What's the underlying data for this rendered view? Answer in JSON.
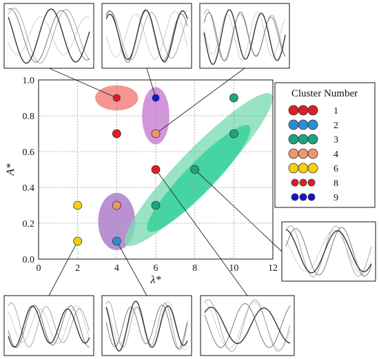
{
  "chart_data": {
    "type": "scatter",
    "xlabel": "λ*",
    "ylabel": "A*",
    "xlim": [
      0,
      12
    ],
    "ylim": [
      0,
      1
    ],
    "x_ticks": [
      "0",
      "2",
      "4",
      "6",
      "8",
      "10",
      "12"
    ],
    "y_ticks": [
      "0.0",
      "0.2",
      "0.4",
      "0.6",
      "0.8",
      "1.0"
    ],
    "grid": true,
    "legend": {
      "title": "Cluster Number",
      "placement": "right",
      "entries": [
        {
          "label": "1",
          "color": "#dc1f26",
          "size": "large"
        },
        {
          "label": "2",
          "color": "#2a8fd1",
          "size": "large"
        },
        {
          "label": "3",
          "color": "#1fa37e",
          "size": "large"
        },
        {
          "label": "4",
          "color": "#f0956a",
          "size": "large"
        },
        {
          "label": "6",
          "color": "#f2d20f",
          "size": "large"
        },
        {
          "label": "8",
          "color": "#dc1f26",
          "size": "small"
        },
        {
          "label": "9",
          "color": "#1414d6",
          "size": "small"
        }
      ]
    },
    "regions": [
      {
        "cluster": "1",
        "color": "#f47a75",
        "cx": 4,
        "cy": 0.9,
        "rx": 1.1,
        "ry": 0.07,
        "angle": 0
      },
      {
        "cluster": "4/9",
        "color": "#c77cd1",
        "cx": 6,
        "cy": 0.8,
        "rx": 0.7,
        "ry": 0.16,
        "angle": 0
      },
      {
        "cluster": "2/4",
        "color": "#a874c7",
        "cx": 4,
        "cy": 0.21,
        "rx": 0.95,
        "ry": 0.16,
        "angle": 0
      },
      {
        "cluster": "3 outer",
        "color": "#7fdcb6",
        "cx": 8.2,
        "cy": 0.5,
        "rx": 3.3,
        "ry": 0.2,
        "angle": 46
      },
      {
        "cluster": "3 inner",
        "color": "#2fd19a",
        "cx": 8.2,
        "cy": 0.45,
        "rx": 2.3,
        "ry": 0.15,
        "angle": 46
      }
    ],
    "points": [
      {
        "x": 4,
        "y": 0.9,
        "cluster": "8"
      },
      {
        "x": 4,
        "y": 0.7,
        "cluster": "1"
      },
      {
        "x": 6,
        "y": 0.9,
        "cluster": "9"
      },
      {
        "x": 6,
        "y": 0.7,
        "cluster": "4"
      },
      {
        "x": 6,
        "y": 0.5,
        "cluster": "1"
      },
      {
        "x": 6,
        "y": 0.3,
        "cluster": "3"
      },
      {
        "x": 8,
        "y": 0.5,
        "cluster": "3"
      },
      {
        "x": 10,
        "y": 0.9,
        "cluster": "3"
      },
      {
        "x": 10,
        "y": 0.7,
        "cluster": "3"
      },
      {
        "x": 4,
        "y": 0.3,
        "cluster": "4"
      },
      {
        "x": 4,
        "y": 0.1,
        "cluster": "2"
      },
      {
        "x": 2,
        "y": 0.3,
        "cluster": "6"
      },
      {
        "x": 2,
        "y": 0.1,
        "cluster": "6"
      }
    ],
    "insets": [
      {
        "id": "top-left",
        "target": {
          "x": 4,
          "y": 0.9
        },
        "anchor": "bottom"
      },
      {
        "id": "top-middle",
        "target": {
          "x": 6,
          "y": 0.9
        },
        "anchor": "bottom"
      },
      {
        "id": "top-right",
        "target": {
          "x": 6,
          "y": 0.7
        },
        "anchor": "bottom"
      },
      {
        "id": "right",
        "target": {
          "x": 8,
          "y": 0.5
        },
        "anchor": "left"
      },
      {
        "id": "bottom-left",
        "target": {
          "x": 2,
          "y": 0.1
        },
        "anchor": "top"
      },
      {
        "id": "bottom-middle",
        "target": {
          "x": 4,
          "y": 0.1
        },
        "anchor": "top"
      },
      {
        "id": "bottom-right",
        "target": {
          "x": 6,
          "y": 0.5
        },
        "anchor": "top"
      }
    ]
  }
}
